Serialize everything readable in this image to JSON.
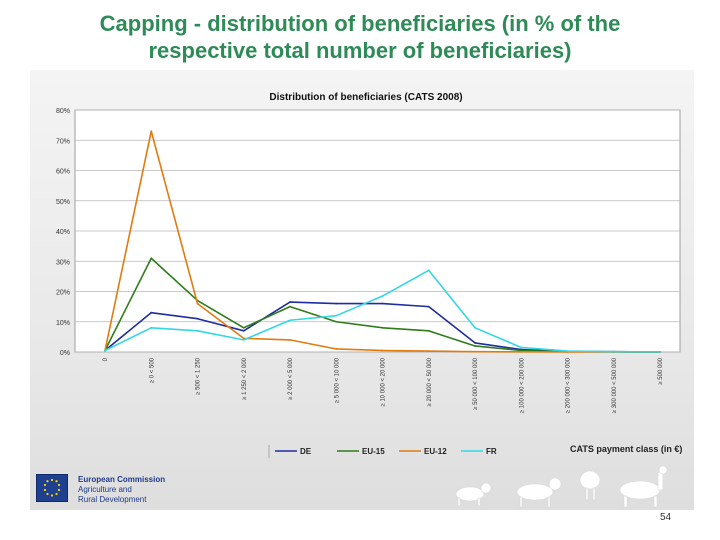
{
  "slide": {
    "title_line1": "Capping - distribution of beneficiaries (in % of the",
    "title_line2": "respective total number of beneficiaries)",
    "page_number": "54"
  },
  "footer": {
    "org_name": "European Commission",
    "org_sub1": "Agriculture and",
    "org_sub2": "Rural Development",
    "logo_icon": "eu-flag-icon",
    "decoration": "farm-animals-silhouette"
  },
  "chart_data": {
    "type": "line",
    "title": "Distribution of beneficiaries (CATS 2008)",
    "xlabel": "CATS payment class (in €)",
    "ylabel": "",
    "ylim": [
      0,
      80
    ],
    "y_ticks": [
      "0%",
      "10%",
      "20%",
      "30%",
      "40%",
      "50%",
      "60%",
      "70%",
      "80%"
    ],
    "categories": [
      "0",
      "≥ 0 < 500",
      "≥ 500 < 1 250",
      "≥ 1 250 < 2 000",
      "≥ 2 000 < 5 000",
      "≥ 5 000 < 10 000",
      "≥ 10 000 < 20 000",
      "≥ 20 000 < 50 000",
      "≥ 50 000 < 100 000",
      "≥ 100 000 < 200 000",
      "≥ 200 000 < 300 000",
      "≥ 300 000 < 500 000",
      "≥ 500 000"
    ],
    "series": [
      {
        "name": "DE",
        "color": "#1f2d9e",
        "values": [
          0.5,
          13,
          11,
          7,
          16.5,
          16,
          16,
          15,
          3,
          0.8,
          0.2,
          0.1,
          0.05
        ]
      },
      {
        "name": "EU-15",
        "color": "#2e7d1a",
        "values": [
          0.5,
          31,
          17,
          8,
          15,
          10,
          8,
          7,
          2,
          0.5,
          0.1,
          0.05,
          0.02
        ]
      },
      {
        "name": "EU-12",
        "color": "#e07b10",
        "values": [
          0.5,
          73,
          16,
          4.5,
          4,
          1,
          0.5,
          0.3,
          0.1,
          0.05,
          0.02,
          0.01,
          0.01
        ]
      },
      {
        "name": "FR",
        "color": "#33d6e6",
        "values": [
          0.5,
          8,
          7,
          4,
          10.5,
          12,
          18.5,
          27,
          8,
          1.5,
          0.3,
          0.1,
          0.05
        ]
      }
    ],
    "grid": true,
    "legend_position": "bottom"
  }
}
